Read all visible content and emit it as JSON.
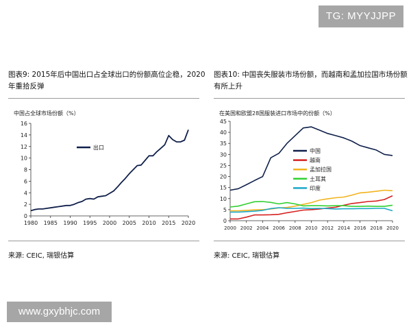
{
  "watermark_top": "TG: MYYJJPP",
  "watermark_bottom": "www.gxybhjc.com",
  "left": {
    "title_line1": "图表9: 2015年后中国出口占全球出口的份额高位企稳，2020",
    "title_line2": "年重拾反弹",
    "source": "来源: CEIC, 瑞银估算"
  },
  "right": {
    "title_line1": "图表10: 中国丧失服装市场份额，而越南和孟加拉国市场份额",
    "title_line2": "有所上升",
    "source": "来源: CEIC, 瑞银估算"
  },
  "chart_data": [
    {
      "type": "line",
      "title": "中国占全球市场份额（%）",
      "xlim": [
        1980,
        2020
      ],
      "ylim": [
        0,
        16
      ],
      "x_ticks": [
        1980,
        1985,
        1990,
        1995,
        2000,
        2005,
        2010,
        2015,
        2020
      ],
      "y_ticks": [
        0,
        2,
        4,
        6,
        8,
        10,
        12,
        14,
        16
      ],
      "legend_position": "middle-left",
      "grid": false,
      "series": [
        {
          "name": "出口",
          "color": "#0f1f4a",
          "x": [
            1980,
            1981,
            1982,
            1983,
            1984,
            1985,
            1986,
            1987,
            1988,
            1989,
            1990,
            1991,
            1992,
            1993,
            1994,
            1995,
            1996,
            1997,
            1998,
            1999,
            2000,
            2001,
            2002,
            2003,
            2004,
            2005,
            2006,
            2007,
            2008,
            2009,
            2010,
            2011,
            2012,
            2013,
            2014,
            2015,
            2016,
            2017,
            2018,
            2019,
            2020
          ],
          "y": [
            0.9,
            1.1,
            1.2,
            1.2,
            1.3,
            1.4,
            1.5,
            1.6,
            1.7,
            1.8,
            1.8,
            2.0,
            2.3,
            2.5,
            2.9,
            3.0,
            2.9,
            3.3,
            3.4,
            3.5,
            3.9,
            4.3,
            5.0,
            5.8,
            6.5,
            7.3,
            8.0,
            8.7,
            8.8,
            9.6,
            10.4,
            10.4,
            11.1,
            11.7,
            12.3,
            13.9,
            13.2,
            12.8,
            12.8,
            13.1,
            14.9
          ]
        }
      ]
    },
    {
      "type": "line",
      "title": "在美国和欧盟28国服装进口市场中的份额（%）",
      "xlim": [
        2000,
        2020
      ],
      "ylim": [
        0,
        45
      ],
      "x_ticks": [
        2000,
        2002,
        2004,
        2006,
        2008,
        2010,
        2012,
        2014,
        2016,
        2018,
        2020
      ],
      "y_ticks": [
        0,
        5,
        10,
        15,
        20,
        25,
        30,
        35,
        40,
        45
      ],
      "legend_position": "middle-left",
      "grid": false,
      "series": [
        {
          "name": "中国",
          "color": "#0f1f4a",
          "x": [
            2000,
            2001,
            2002,
            2003,
            2004,
            2005,
            2006,
            2007,
            2008,
            2009,
            2010,
            2011,
            2012,
            2013,
            2014,
            2015,
            2016,
            2017,
            2018,
            2019,
            2020
          ],
          "y": [
            13.8,
            14.5,
            16.3,
            18.2,
            20.0,
            28.5,
            30.5,
            35.0,
            38.5,
            42.0,
            42.5,
            41.0,
            39.5,
            38.5,
            37.5,
            36.0,
            34.0,
            33.0,
            32.0,
            30.0,
            29.5
          ]
        },
        {
          "name": "越南",
          "color": "#d62020",
          "x": [
            2000,
            2001,
            2002,
            2003,
            2004,
            2005,
            2006,
            2007,
            2008,
            2009,
            2010,
            2011,
            2012,
            2013,
            2014,
            2015,
            2016,
            2017,
            2018,
            2019,
            2020
          ],
          "y": [
            0.8,
            0.8,
            1.6,
            2.6,
            2.6,
            2.7,
            2.9,
            3.6,
            4.2,
            4.8,
            5.0,
            5.3,
            5.7,
            6.1,
            7.0,
            7.8,
            8.2,
            8.7,
            8.9,
            9.6,
            11.3
          ]
        },
        {
          "name": "孟加拉国",
          "color": "#f2b31c",
          "x": [
            2000,
            2001,
            2002,
            2003,
            2004,
            2005,
            2006,
            2007,
            2008,
            2009,
            2010,
            2011,
            2012,
            2013,
            2014,
            2015,
            2016,
            2017,
            2018,
            2019,
            2020
          ],
          "y": [
            4.5,
            4.5,
            4.7,
            4.9,
            5.0,
            5.3,
            5.8,
            6.0,
            6.6,
            7.4,
            8.2,
            9.3,
            9.9,
            10.4,
            10.7,
            11.6,
            12.6,
            12.9,
            13.3,
            13.8,
            13.6
          ]
        },
        {
          "name": "土耳其",
          "color": "#30d030",
          "x": [
            2000,
            2001,
            2002,
            2003,
            2004,
            2005,
            2006,
            2007,
            2008,
            2009,
            2010,
            2011,
            2012,
            2013,
            2014,
            2015,
            2016,
            2017,
            2018,
            2019,
            2020
          ],
          "y": [
            6.2,
            6.6,
            7.6,
            8.6,
            8.7,
            8.3,
            7.6,
            8.2,
            7.6,
            6.7,
            6.8,
            6.8,
            6.7,
            6.8,
            6.8,
            6.5,
            6.5,
            6.6,
            6.5,
            6.5,
            7.0
          ]
        },
        {
          "name": "印度",
          "color": "#1aa8c8",
          "x": [
            2000,
            2001,
            2002,
            2003,
            2004,
            2005,
            2006,
            2007,
            2008,
            2009,
            2010,
            2011,
            2012,
            2013,
            2014,
            2015,
            2016,
            2017,
            2018,
            2019,
            2020
          ],
          "y": [
            3.9,
            3.9,
            4.1,
            4.3,
            4.7,
            5.5,
            5.9,
            5.6,
            5.6,
            5.7,
            5.5,
            5.6,
            5.5,
            5.3,
            5.4,
            5.4,
            5.5,
            5.5,
            5.6,
            5.6,
            4.5
          ]
        }
      ]
    }
  ]
}
